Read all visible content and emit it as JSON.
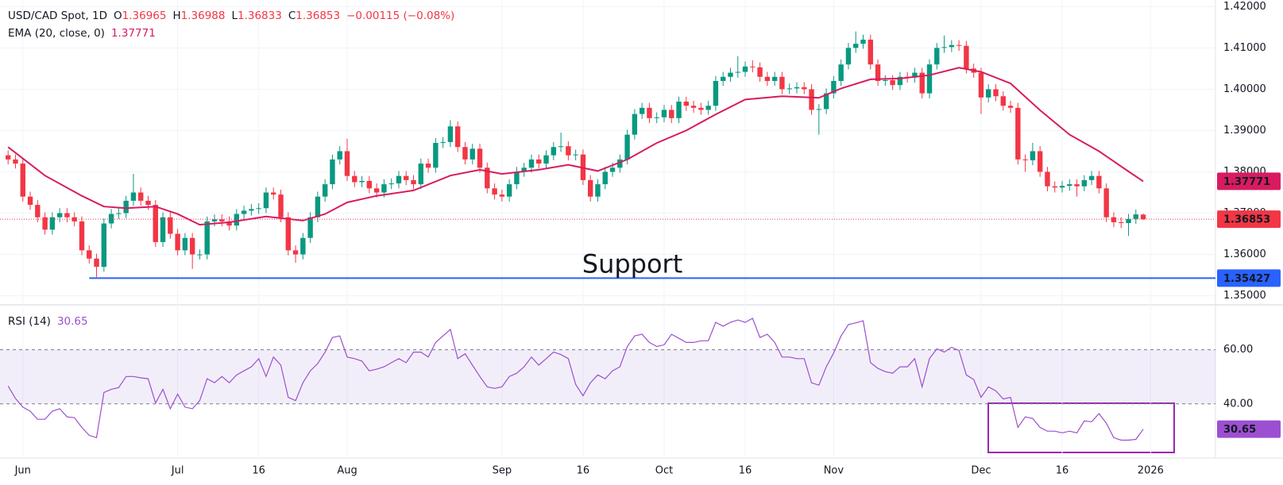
{
  "chart_data": {
    "type": "candlestick",
    "symbol": "USD/CAD Spot, 1D",
    "ohlc_labels": [
      "O",
      "H",
      "L",
      "C"
    ],
    "change": "−0.00115 (−0.08%)",
    "colors": {
      "up": "#089981",
      "down": "#f23645"
    },
    "ylim": [
      1.348,
      1.4216
    ],
    "yticks": [
      {
        "value": 1.35,
        "label": "1.35000"
      },
      {
        "value": 1.36,
        "label": "1.36000"
      },
      {
        "value": 1.37,
        "label": "1.37000"
      },
      {
        "value": 1.38,
        "label": "1.38000"
      },
      {
        "value": 1.39,
        "label": "1.39000"
      },
      {
        "value": 1.4,
        "label": "1.40000"
      },
      {
        "value": 1.41,
        "label": "1.41000"
      },
      {
        "value": 1.42,
        "label": "1.42000"
      }
    ],
    "xlim": [
      -1.1,
      163.8
    ],
    "xticks": [
      {
        "value": 2,
        "label": "Jun"
      },
      {
        "value": 23,
        "label": "Jul"
      },
      {
        "value": 34,
        "label": "16"
      },
      {
        "value": 46,
        "label": "Aug"
      },
      {
        "value": 67,
        "label": "Sep"
      },
      {
        "value": 78,
        "label": "16"
      },
      {
        "value": 89,
        "label": "Oct"
      },
      {
        "value": 100,
        "label": "16"
      },
      {
        "value": 112,
        "label": "Nov"
      },
      {
        "value": 132,
        "label": "Dec"
      },
      {
        "value": 143,
        "label": "16"
      },
      {
        "value": 155,
        "label": "2026"
      }
    ],
    "ohlc": [
      [
        1.384,
        1.3852,
        1.3818,
        1.383
      ],
      [
        1.383,
        1.3842,
        1.3808,
        1.382
      ],
      [
        1.382,
        1.3832,
        1.3728,
        1.374
      ],
      [
        1.374,
        1.3752,
        1.3708,
        1.372
      ],
      [
        1.372,
        1.3732,
        1.3678,
        1.369
      ],
      [
        1.369,
        1.3702,
        1.3648,
        1.366
      ],
      [
        1.366,
        1.3702,
        1.3648,
        1.369
      ],
      [
        1.369,
        1.3712,
        1.3678,
        1.37
      ],
      [
        1.37,
        1.3712,
        1.3678,
        1.369
      ],
      [
        1.369,
        1.3702,
        1.3668,
        1.368
      ],
      [
        1.368,
        1.3692,
        1.3598,
        1.361
      ],
      [
        1.361,
        1.3622,
        1.3578,
        1.359
      ],
      [
        1.359,
        1.3602,
        1.3545,
        1.357
      ],
      [
        1.357,
        1.3687,
        1.3558,
        1.3675
      ],
      [
        1.3675,
        1.371,
        1.3663,
        1.3698
      ],
      [
        1.3698,
        1.3712,
        1.3686,
        1.37
      ],
      [
        1.37,
        1.3742,
        1.3688,
        1.373
      ],
      [
        1.373,
        1.3795,
        1.3718,
        1.375
      ],
      [
        1.375,
        1.3762,
        1.3718,
        1.373
      ],
      [
        1.373,
        1.3742,
        1.3708,
        1.372
      ],
      [
        1.372,
        1.3732,
        1.3618,
        1.363
      ],
      [
        1.363,
        1.3702,
        1.3618,
        1.369
      ],
      [
        1.369,
        1.3702,
        1.3638,
        1.365
      ],
      [
        1.365,
        1.3662,
        1.3598,
        1.361
      ],
      [
        1.361,
        1.3652,
        1.3598,
        1.364
      ],
      [
        1.364,
        1.3652,
        1.3565,
        1.36
      ],
      [
        1.36,
        1.3612,
        1.3588,
        1.36
      ],
      [
        1.36,
        1.3692,
        1.3588,
        1.368
      ],
      [
        1.368,
        1.3697,
        1.3668,
        1.3685
      ],
      [
        1.3685,
        1.3697,
        1.3668,
        1.368
      ],
      [
        1.368,
        1.3692,
        1.3658,
        1.367
      ],
      [
        1.367,
        1.371,
        1.3658,
        1.3698
      ],
      [
        1.3698,
        1.3718,
        1.3686,
        1.3706
      ],
      [
        1.3706,
        1.3722,
        1.3694,
        1.371
      ],
      [
        1.371,
        1.3724,
        1.3698,
        1.3712
      ],
      [
        1.3712,
        1.3762,
        1.37,
        1.375
      ],
      [
        1.375,
        1.3762,
        1.3733,
        1.3745
      ],
      [
        1.3745,
        1.3757,
        1.3678,
        1.369
      ],
      [
        1.369,
        1.3702,
        1.3598,
        1.361
      ],
      [
        1.361,
        1.3622,
        1.358,
        1.36
      ],
      [
        1.36,
        1.3652,
        1.3588,
        1.364
      ],
      [
        1.364,
        1.3702,
        1.3628,
        1.369
      ],
      [
        1.369,
        1.3752,
        1.3678,
        1.374
      ],
      [
        1.374,
        1.3782,
        1.3728,
        1.377
      ],
      [
        1.377,
        1.3842,
        1.3758,
        1.383
      ],
      [
        1.383,
        1.3862,
        1.3818,
        1.385
      ],
      [
        1.385,
        1.388,
        1.3778,
        1.379
      ],
      [
        1.379,
        1.3802,
        1.3763,
        1.3775
      ],
      [
        1.3775,
        1.379,
        1.3763,
        1.3778
      ],
      [
        1.3778,
        1.379,
        1.3748,
        1.376
      ],
      [
        1.376,
        1.3772,
        1.3738,
        1.375
      ],
      [
        1.375,
        1.3782,
        1.3738,
        1.377
      ],
      [
        1.377,
        1.3784,
        1.3758,
        1.3772
      ],
      [
        1.3772,
        1.3802,
        1.376,
        1.379
      ],
      [
        1.379,
        1.3802,
        1.3768,
        1.378
      ],
      [
        1.378,
        1.3792,
        1.3758,
        1.377
      ],
      [
        1.377,
        1.3832,
        1.3758,
        1.382
      ],
      [
        1.382,
        1.3832,
        1.3798,
        1.381
      ],
      [
        1.381,
        1.3882,
        1.3798,
        1.387
      ],
      [
        1.387,
        1.3884,
        1.3858,
        1.3872
      ],
      [
        1.3872,
        1.3925,
        1.386,
        1.391
      ],
      [
        1.391,
        1.3922,
        1.3848,
        1.386
      ],
      [
        1.386,
        1.3872,
        1.3818,
        1.383
      ],
      [
        1.383,
        1.3868,
        1.3818,
        1.3856
      ],
      [
        1.3856,
        1.3868,
        1.3798,
        1.381
      ],
      [
        1.381,
        1.3822,
        1.3748,
        1.376
      ],
      [
        1.376,
        1.3772,
        1.3733,
        1.3745
      ],
      [
        1.3745,
        1.3757,
        1.3728,
        1.374
      ],
      [
        1.374,
        1.3782,
        1.3728,
        1.377
      ],
      [
        1.377,
        1.3812,
        1.3758,
        1.38
      ],
      [
        1.38,
        1.3822,
        1.3788,
        1.381
      ],
      [
        1.381,
        1.3842,
        1.3798,
        1.383
      ],
      [
        1.383,
        1.3842,
        1.3808,
        1.382
      ],
      [
        1.382,
        1.3852,
        1.3808,
        1.384
      ],
      [
        1.384,
        1.3872,
        1.3828,
        1.386
      ],
      [
        1.386,
        1.3895,
        1.3848,
        1.3862
      ],
      [
        1.3862,
        1.3874,
        1.3828,
        1.384
      ],
      [
        1.384,
        1.3854,
        1.3828,
        1.3842
      ],
      [
        1.3842,
        1.3854,
        1.3768,
        1.378
      ],
      [
        1.378,
        1.3792,
        1.3728,
        1.374
      ],
      [
        1.374,
        1.3782,
        1.3728,
        1.377
      ],
      [
        1.377,
        1.3812,
        1.3758,
        1.38
      ],
      [
        1.38,
        1.3822,
        1.3788,
        1.381
      ],
      [
        1.381,
        1.3842,
        1.3798,
        1.383
      ],
      [
        1.383,
        1.3902,
        1.3818,
        1.389
      ],
      [
        1.389,
        1.3952,
        1.3878,
        1.394
      ],
      [
        1.394,
        1.3967,
        1.3928,
        1.3955
      ],
      [
        1.3955,
        1.3967,
        1.3918,
        1.393
      ],
      [
        1.393,
        1.3944,
        1.3918,
        1.3932
      ],
      [
        1.3932,
        1.3962,
        1.392,
        1.395
      ],
      [
        1.395,
        1.3962,
        1.3918,
        1.393
      ],
      [
        1.393,
        1.3982,
        1.3918,
        1.397
      ],
      [
        1.397,
        1.3982,
        1.3948,
        1.396
      ],
      [
        1.396,
        1.3972,
        1.3943,
        1.3955
      ],
      [
        1.3955,
        1.3967,
        1.3938,
        1.395
      ],
      [
        1.395,
        1.3972,
        1.3938,
        1.396
      ],
      [
        1.396,
        1.4032,
        1.3948,
        1.402
      ],
      [
        1.402,
        1.4042,
        1.4008,
        1.403
      ],
      [
        1.403,
        1.4052,
        1.4018,
        1.404
      ],
      [
        1.404,
        1.408,
        1.4028,
        1.4042
      ],
      [
        1.4042,
        1.4067,
        1.403,
        1.4055
      ],
      [
        1.4055,
        1.407,
        1.4041,
        1.4053
      ],
      [
        1.4053,
        1.4065,
        1.4018,
        1.403
      ],
      [
        1.403,
        1.4042,
        1.4008,
        1.402
      ],
      [
        1.402,
        1.4042,
        1.4008,
        1.403
      ],
      [
        1.403,
        1.4042,
        1.3988,
        1.4
      ],
      [
        1.4,
        1.4014,
        1.3988,
        1.4002
      ],
      [
        1.4002,
        1.4017,
        1.399,
        1.4005
      ],
      [
        1.4005,
        1.4017,
        1.3988,
        1.4
      ],
      [
        1.4,
        1.4012,
        1.3938,
        1.395
      ],
      [
        1.395,
        1.3964,
        1.389,
        1.3952
      ],
      [
        1.3952,
        1.4002,
        1.394,
        1.399
      ],
      [
        1.399,
        1.4032,
        1.3978,
        1.402
      ],
      [
        1.402,
        1.4072,
        1.4008,
        1.406
      ],
      [
        1.406,
        1.4112,
        1.4048,
        1.41
      ],
      [
        1.41,
        1.414,
        1.4088,
        1.411
      ],
      [
        1.411,
        1.4132,
        1.4098,
        1.412
      ],
      [
        1.412,
        1.4132,
        1.4048,
        1.406
      ],
      [
        1.406,
        1.4072,
        1.4008,
        1.402
      ],
      [
        1.402,
        1.4034,
        1.4008,
        1.4022
      ],
      [
        1.4022,
        1.4034,
        1.3998,
        1.401
      ],
      [
        1.401,
        1.4042,
        1.3998,
        1.403
      ],
      [
        1.403,
        1.4042,
        1.4016,
        1.4028
      ],
      [
        1.4028,
        1.4052,
        1.4016,
        1.404
      ],
      [
        1.404,
        1.4052,
        1.3978,
        1.399
      ],
      [
        1.399,
        1.4072,
        1.3978,
        1.406
      ],
      [
        1.406,
        1.4112,
        1.4048,
        1.41
      ],
      [
        1.41,
        1.413,
        1.4088,
        1.4102
      ],
      [
        1.4102,
        1.4119,
        1.409,
        1.4107
      ],
      [
        1.4107,
        1.4119,
        1.4093,
        1.4105
      ],
      [
        1.4105,
        1.4117,
        1.4038,
        1.405
      ],
      [
        1.405,
        1.4062,
        1.4028,
        1.404
      ],
      [
        1.404,
        1.4052,
        1.394,
        1.398
      ],
      [
        1.398,
        1.4012,
        1.3968,
        1.4
      ],
      [
        1.4,
        1.4012,
        1.3971,
        1.3983
      ],
      [
        1.3983,
        1.3995,
        1.3948,
        1.396
      ],
      [
        1.396,
        1.3972,
        1.3943,
        1.3955
      ],
      [
        1.3955,
        1.3967,
        1.3818,
        1.383
      ],
      [
        1.383,
        1.3842,
        1.38,
        1.3828
      ],
      [
        1.3828,
        1.387,
        1.3816,
        1.385
      ],
      [
        1.385,
        1.3862,
        1.3788,
        1.38
      ],
      [
        1.38,
        1.3812,
        1.3753,
        1.3765
      ],
      [
        1.3765,
        1.3777,
        1.375,
        1.3762
      ],
      [
        1.3762,
        1.3778,
        1.375,
        1.3766
      ],
      [
        1.3766,
        1.3782,
        1.3754,
        1.377
      ],
      [
        1.377,
        1.3782,
        1.374,
        1.3765
      ],
      [
        1.3765,
        1.3792,
        1.3753,
        1.378
      ],
      [
        1.378,
        1.3802,
        1.3768,
        1.379
      ],
      [
        1.379,
        1.3802,
        1.3748,
        1.376
      ],
      [
        1.376,
        1.3772,
        1.3678,
        1.369
      ],
      [
        1.369,
        1.3702,
        1.3666,
        1.3678
      ],
      [
        1.3678,
        1.369,
        1.3664,
        1.3676
      ],
      [
        1.3676,
        1.3698,
        1.3645,
        1.3686
      ],
      [
        1.3686,
        1.3709,
        1.3674,
        1.3697
      ],
      [
        1.36965,
        1.36988,
        1.36833,
        1.36853
      ]
    ],
    "ema": {
      "label": "EMA (20, close, 0)",
      "color": "#d81b60",
      "x": [
        0,
        5,
        10,
        13,
        16,
        20,
        23,
        26,
        30,
        35,
        40,
        43,
        46,
        50,
        55,
        60,
        64,
        67,
        72,
        76,
        80,
        84,
        88,
        92,
        96,
        100,
        105,
        110,
        113,
        117,
        121,
        125,
        129,
        132,
        136,
        140,
        144,
        148,
        152,
        154
      ],
      "values": [
        1.386,
        1.3791,
        1.3742,
        1.3716,
        1.3712,
        1.3716,
        1.3698,
        1.3672,
        1.3678,
        1.3692,
        1.3682,
        1.3698,
        1.3726,
        1.3742,
        1.3755,
        1.3791,
        1.3805,
        1.3795,
        1.3805,
        1.3817,
        1.3802,
        1.383,
        1.387,
        1.39,
        1.3939,
        1.3975,
        1.3983,
        1.3979,
        1.4002,
        1.4024,
        1.4026,
        1.4034,
        1.4052,
        1.4042,
        1.4014,
        1.3949,
        1.389,
        1.385,
        1.3801,
        1.37771
      ]
    },
    "support": {
      "label": "Support",
      "value": 1.35427,
      "x": 11,
      "color": "#2962ff"
    },
    "rsi": {
      "label": "RSI (14)",
      "color": "#9c4fd0",
      "ylim": [
        20,
        76
      ],
      "yticks": [
        {
          "value": 40,
          "label": "40.00"
        },
        {
          "value": 60,
          "label": "60.00"
        }
      ],
      "values": [
        46.6,
        42.0,
        38.8,
        37.3,
        34.3,
        34.3,
        37.3,
        38.2,
        35.2,
        34.9,
        31.3,
        28.4,
        27.5,
        44.2,
        45.4,
        46.0,
        50.1,
        50.1,
        49.6,
        49.3,
        40.3,
        45.4,
        38.2,
        43.6,
        38.8,
        38.2,
        41.2,
        49.3,
        47.8,
        50.1,
        47.8,
        50.7,
        52.2,
        53.7,
        56.7,
        50.1,
        57.3,
        54.3,
        42.4,
        41.2,
        47.8,
        52.2,
        54.9,
        59.1,
        64.5,
        65.1,
        57.3,
        56.7,
        55.8,
        52.2,
        52.8,
        53.7,
        55.2,
        56.7,
        55.2,
        59.1,
        59.1,
        57.3,
        62.7,
        65.1,
        67.5,
        56.7,
        58.5,
        54.3,
        50.1,
        46.3,
        45.7,
        46.3,
        50.1,
        51.3,
        53.7,
        57.3,
        54.3,
        56.7,
        59.1,
        58.2,
        56.7,
        47.2,
        43.0,
        47.8,
        50.7,
        49.3,
        52.2,
        53.7,
        61.2,
        65.1,
        65.7,
        62.7,
        61.2,
        61.8,
        65.7,
        64.2,
        62.7,
        62.7,
        63.3,
        63.3,
        70.1,
        68.7,
        70.1,
        71.0,
        70.1,
        71.6,
        64.5,
        65.7,
        62.7,
        57.3,
        57.3,
        56.7,
        56.7,
        47.8,
        46.9,
        53.7,
        58.8,
        65.1,
        69.3,
        69.9,
        70.7,
        55.2,
        53.1,
        51.9,
        51.3,
        53.7,
        53.7,
        56.7,
        46.3,
        56.7,
        60.3,
        59.1,
        60.9,
        59.7,
        50.7,
        49.0,
        42.4,
        46.3,
        44.8,
        41.8,
        42.4,
        31.3,
        35.2,
        34.6,
        31.3,
        29.9,
        29.9,
        29.3,
        29.9,
        29.3,
        33.7,
        33.4,
        36.4,
        32.8,
        27.5,
        26.6,
        26.6,
        26.9,
        30.65
      ]
    }
  }
}
